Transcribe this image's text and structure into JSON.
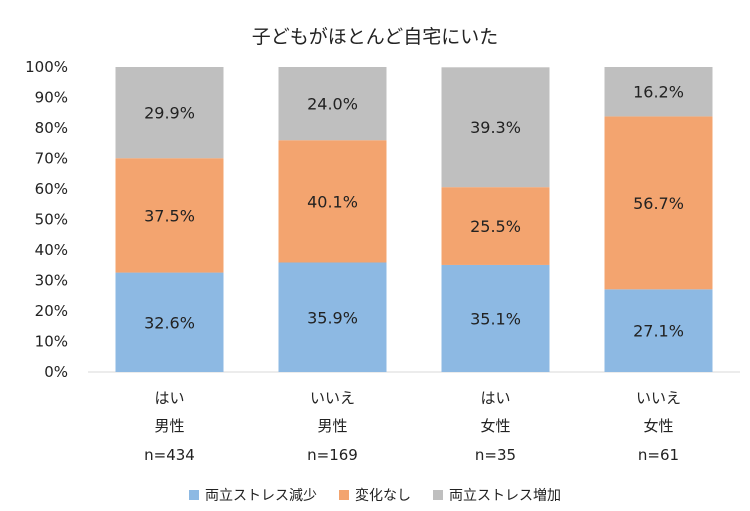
{
  "chart_data": {
    "type": "bar",
    "stacked": true,
    "title": "子どもがほとんど自宅にいた",
    "categories": [
      {
        "line1": "はい",
        "line2": "男性",
        "line3": "n=434"
      },
      {
        "line1": "いいえ",
        "line2": "男性",
        "line3": "n=169"
      },
      {
        "line1": "はい",
        "line2": "女性",
        "line3": "n=35"
      },
      {
        "line1": "いいえ",
        "line2": "女性",
        "line3": "n=61"
      }
    ],
    "series": [
      {
        "name": "両立ストレス減少",
        "color": "#8DB9E3",
        "values": [
          32.6,
          35.9,
          35.1,
          27.1
        ],
        "labels": [
          "32.6%",
          "35.9%",
          "35.1%",
          "27.1%"
        ]
      },
      {
        "name": "変化なし",
        "color": "#F3A46F",
        "values": [
          37.5,
          40.1,
          25.5,
          56.7
        ],
        "labels": [
          "37.5%",
          "40.1%",
          "25.5%",
          "56.7%"
        ]
      },
      {
        "name": "両立ストレス増加",
        "color": "#BFBFBF",
        "values": [
          29.9,
          24.0,
          39.3,
          16.2
        ],
        "labels": [
          "29.9%",
          "24.0%",
          "39.3%",
          "16.2%"
        ]
      }
    ],
    "ylim": [
      0,
      100
    ],
    "yticks": [
      "0%",
      "10%",
      "20%",
      "30%",
      "40%",
      "50%",
      "60%",
      "70%",
      "80%",
      "90%",
      "100%"
    ],
    "grid": false,
    "legend_position": "bottom"
  }
}
